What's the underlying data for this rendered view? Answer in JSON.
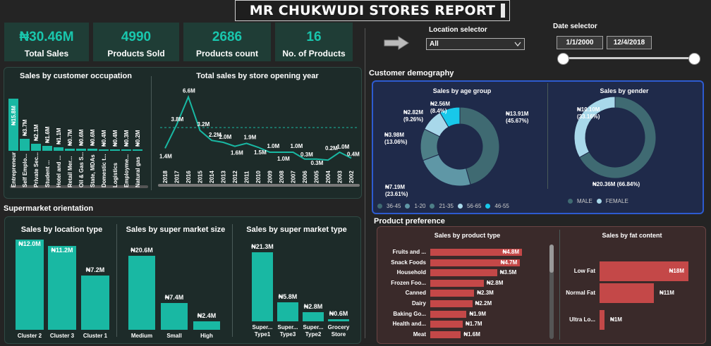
{
  "title": "MR CHUKWUDI STORES REPORT",
  "kpis": [
    {
      "value": "₦30.46M",
      "label": "Total Sales"
    },
    {
      "value": "4990",
      "label": "Products Sold"
    },
    {
      "value": "2686",
      "label": "Products count"
    },
    {
      "value": "16",
      "label": "No. of Products"
    }
  ],
  "location_selector": {
    "label": "Location selector",
    "value": "All"
  },
  "date_selector": {
    "label": "Date selector",
    "start": "1/1/2000",
    "end": "12/4/2018"
  },
  "sections": {
    "supermarket_orientation": "Supermarket orientation",
    "customer_demography": "Customer demography",
    "product_preference": "Product preference"
  },
  "colors": {
    "teal": "#19b8a3",
    "red": "#c44848",
    "navy": "#1f2a4a"
  },
  "chart_data": [
    {
      "type": "bar",
      "title": "Sales by customer occupation",
      "categories": [
        "Entrepreneur",
        "Self Emplo...",
        "Private Sec...",
        "Student ...",
        "Hotel and ...",
        "Retail Mer...",
        "Oil & Gas S...",
        "State, MDAs",
        "Domestic t...",
        "Logistics",
        "Employme...",
        "Natural gas"
      ],
      "value_labels": [
        "₦15.8M",
        "₦3.7M",
        "₦2.1M",
        "₦1.6M",
        "₦1.1M",
        "₦0.7M",
        "₦0.6M",
        "₦0.6M",
        "₦0.4M",
        "₦0.4M",
        "₦0.3M",
        "₦0.2M"
      ],
      "values": [
        15.8,
        3.7,
        2.1,
        1.6,
        1.1,
        0.7,
        0.6,
        0.6,
        0.4,
        0.4,
        0.3,
        0.2
      ]
    },
    {
      "type": "line",
      "title": "Total sales by store opening year",
      "x": [
        "2018",
        "2017",
        "2016",
        "2015",
        "2014",
        "2013",
        "2012",
        "2011",
        "2010",
        "2009",
        "2008",
        "2007",
        "2006",
        "2005",
        "2004",
        "2003",
        "2002"
      ],
      "value_labels": [
        "1.4M",
        "3.8M",
        "6.6M",
        "3.2M",
        "2.2M",
        "2.0M",
        "1.6M",
        "1.9M",
        "1.5M",
        "1.0M",
        "1.0M",
        "1.0M",
        "0.3M",
        "0.3M",
        "0.2M",
        "1.0M",
        "0.4M"
      ],
      "values": [
        1.4,
        3.8,
        6.6,
        3.2,
        2.2,
        2.0,
        1.6,
        1.9,
        1.5,
        1.0,
        1.0,
        1.0,
        0.3,
        0.3,
        0.2,
        1.0,
        0.4
      ]
    },
    {
      "type": "bar",
      "title": "Sales by location type",
      "categories": [
        "Cluster 2",
        "Cluster 3",
        "Cluster 1"
      ],
      "value_labels": [
        "₦12.0M",
        "₦11.2M",
        "₦7.2M"
      ],
      "values": [
        12.0,
        11.2,
        7.2
      ]
    },
    {
      "type": "bar",
      "title": "Sales by super market size",
      "categories": [
        "Medium",
        "Small",
        "High"
      ],
      "value_labels": [
        "₦20.6M",
        "₦7.4M",
        "₦2.4M"
      ],
      "values": [
        20.6,
        7.4,
        2.4
      ]
    },
    {
      "type": "bar",
      "title": "Sales by super market type",
      "categories": [
        "Super... Type1",
        "Super... Type3",
        "Super... Type2",
        "Grocery Store"
      ],
      "value_labels": [
        "₦21.3M",
        "₦5.8M",
        "₦2.8M",
        "₦0.6M"
      ],
      "values": [
        21.3,
        5.8,
        2.8,
        0.6
      ]
    },
    {
      "type": "pie",
      "title": "Sales by age group",
      "slices": [
        {
          "name": "36-45",
          "value": 13.91,
          "percent": 45.67,
          "label": "₦13.91M (45.67%)",
          "color": "#3f6a72"
        },
        {
          "name": "1-20",
          "value": 7.19,
          "percent": 23.61,
          "label": "₦7.19M (23.61%)",
          "color": "#5f97a6"
        },
        {
          "name": "21-35",
          "value": 3.98,
          "percent": 13.06,
          "label": "₦3.98M (13.06%)",
          "color": "#4d7f87"
        },
        {
          "name": "56-65",
          "value": 2.82,
          "percent": 9.26,
          "label": "₦2.82M (9.26%)",
          "color": "#a8d8ea"
        },
        {
          "name": "46-55",
          "value": 2.56,
          "percent": 8.4,
          "label": "₦2.56M (8.4%)",
          "color": "#18c8ea"
        }
      ]
    },
    {
      "type": "pie",
      "title": "Sales by gender",
      "slices": [
        {
          "name": "MALE",
          "value": 20.36,
          "percent": 66.84,
          "label": "₦20.36M (66.84%)",
          "color": "#3f6a72"
        },
        {
          "name": "FEMALE",
          "value": 10.1,
          "percent": 33.16,
          "label": "₦10.10M (33.16%)",
          "color": "#a8d8ea"
        }
      ]
    },
    {
      "type": "bar",
      "title": "Sales by product type",
      "categories": [
        "Fruits and ...",
        "Snack Foods",
        "Household",
        "Frozen Foo...",
        "Canned",
        "Dairy",
        "Baking Go...",
        "Health and...",
        "Meat"
      ],
      "value_labels": [
        "₦4.8M",
        "₦4.7M",
        "₦3.5M",
        "₦2.8M",
        "₦2.3M",
        "₦2.2M",
        "₦1.9M",
        "₦1.7M",
        "₦1.6M"
      ],
      "values": [
        4.8,
        4.7,
        3.5,
        2.8,
        2.3,
        2.2,
        1.9,
        1.7,
        1.6
      ]
    },
    {
      "type": "bar",
      "title": "Sales by fat content",
      "categories": [
        "Low Fat",
        "Normal Fat",
        "Ultra Lo..."
      ],
      "value_labels": [
        "₦18M",
        "₦11M",
        "₦1M"
      ],
      "values": [
        18,
        11,
        1
      ]
    }
  ]
}
